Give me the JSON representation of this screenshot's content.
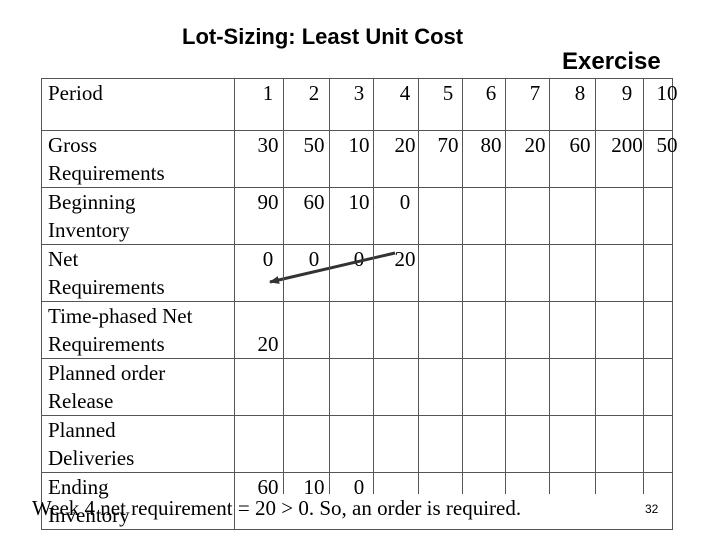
{
  "title": "Lot-Sizing: Least Unit Cost",
  "subtitle": "Exercise",
  "table": {
    "period_label": "Period",
    "periods": [
      "1",
      "2",
      "3",
      "4",
      "5",
      "6",
      "7",
      "8",
      "9",
      "10"
    ],
    "rows": [
      {
        "label": "Gross Requirements",
        "label_lines": [
          "Gross",
          "Requirements"
        ],
        "values": [
          "30",
          "50",
          "10",
          "20",
          "70",
          "80",
          "20",
          "60",
          "200",
          "50"
        ]
      },
      {
        "label": "Beginning Inventory",
        "label_lines": [
          "Beginning",
          "Inventory"
        ],
        "values": [
          "90",
          "60",
          "10",
          "0",
          "",
          "",
          "",
          "",
          "",
          ""
        ]
      },
      {
        "label": "Net Requirements",
        "label_lines": [
          "Net",
          "Requirements"
        ],
        "values": [
          "0",
          "0",
          "0",
          "20",
          "",
          "",
          "",
          "",
          "",
          ""
        ]
      },
      {
        "label": "Time-phased Net Requirements",
        "label_lines": [
          "Time-phased Net",
          "Requirements"
        ],
        "values": [
          "20",
          "",
          "",
          "",
          "",
          "",
          "",
          "",
          "",
          ""
        ]
      },
      {
        "label": "Planned order Release",
        "label_lines": [
          "Planned order",
          "Release"
        ],
        "values": [
          "",
          "",
          "",
          "",
          "",
          "",
          "",
          "",
          "",
          ""
        ]
      },
      {
        "label": "Planned Deliveries",
        "label_lines": [
          "Planned",
          "Deliveries"
        ],
        "values": [
          "",
          "",
          "",
          "",
          "",
          "",
          "",
          "",
          "",
          ""
        ]
      },
      {
        "label": "Ending Inventory",
        "label_lines": [
          "Ending",
          "Inventory"
        ],
        "values": [
          "60",
          "10",
          "0",
          "",
          "",
          "",
          "",
          "",
          "",
          ""
        ]
      }
    ]
  },
  "footer_note": "Week 4 net requirement = 20 > 0. So, an order is required.",
  "page_number": "32",
  "colors": {
    "arrow": "#333333",
    "grid": "#555555"
  }
}
